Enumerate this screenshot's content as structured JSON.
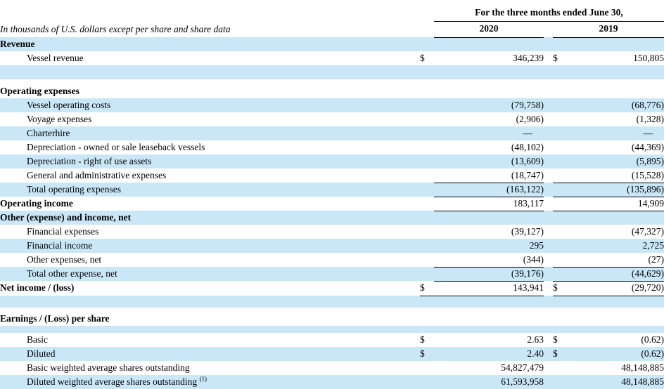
{
  "table": {
    "note": "In thousands of U.S. dollars except per share and share data",
    "period_header": "For the three months ended June 30,",
    "years": [
      "2020",
      "2019"
    ],
    "currency_symbol": "$",
    "colors": {
      "row_highlight": "#cae7f8",
      "border": "#000000",
      "text": "#000000",
      "background": "#ffffff"
    },
    "rows": [
      {
        "label": "Revenue",
        "bold": true,
        "bg": "hl",
        "h": 20
      },
      {
        "label": "Vessel revenue",
        "indent": true,
        "d1": "$",
        "v1": "346,239",
        "d2": "$",
        "v2": "150,805",
        "h": 20
      },
      {
        "label": "",
        "bg": "hl",
        "h": 20
      },
      {
        "label": "",
        "h": 7
      },
      {
        "label": "Operating expenses",
        "bold": true,
        "h": 20
      },
      {
        "label": "Vessel operating costs",
        "indent": true,
        "bg": "hl",
        "v1": "(79,758)",
        "v2": "(68,776)",
        "h": 20
      },
      {
        "label": "Voyage expenses",
        "indent": true,
        "v1": "(2,906)",
        "v2": "(1,328)",
        "h": 20
      },
      {
        "label": "Charterhire",
        "indent": true,
        "bg": "hl",
        "v1": "—",
        "v2": "—",
        "h": 20
      },
      {
        "label": "Depreciation - owned or sale leaseback vessels",
        "indent": true,
        "v1": "(48,102)",
        "v2": "(44,369)",
        "h": 20
      },
      {
        "label": "Depreciation - right of use assets",
        "indent": true,
        "bg": "hl",
        "v1": "(13,609)",
        "v2": "(5,895)",
        "h": 20
      },
      {
        "label": "General and administrative expenses",
        "indent": true,
        "v1": "(18,747)",
        "v2": "(15,528)",
        "u": true,
        "h": 20
      },
      {
        "label": "Total operating expenses",
        "indent": true,
        "bg": "hl",
        "v1": "(163,122)",
        "v2": "(135,896)",
        "u": true,
        "h": 20
      },
      {
        "label": "Operating income",
        "bold": true,
        "v1": "183,117",
        "v2": "14,909",
        "u": true,
        "h": 20
      },
      {
        "label": "Other (expense) and income, net",
        "bold": true,
        "bg": "hl",
        "h": 20
      },
      {
        "label": "Financial expenses",
        "indent": true,
        "v1": "(39,127)",
        "v2": "(47,327)",
        "h": 20
      },
      {
        "label": "Financial income",
        "indent": true,
        "bg": "hl",
        "v1": "295",
        "v2": "2,725",
        "h": 20
      },
      {
        "label": "Other expenses, net",
        "indent": true,
        "v1": "(344)",
        "v2": "(27)",
        "u": true,
        "h": 20
      },
      {
        "label": "Total other expense, net",
        "indent": true,
        "bg": "hl",
        "v1": "(39,176)",
        "v2": "(44,629)",
        "u": true,
        "h": 20
      },
      {
        "label": "Net income / (loss)",
        "bold": true,
        "d1": "$",
        "v1": "143,941",
        "d2": "$",
        "v2": "(29,720)",
        "u": true,
        "h": 21
      },
      {
        "label": "",
        "bg": "hl",
        "h": 17
      },
      {
        "label": "",
        "h": 7
      },
      {
        "label": "Earnings / (Loss) per share",
        "bold": true,
        "h": 19
      },
      {
        "label": "",
        "bg": "hl",
        "h": 10
      },
      {
        "label": "Basic",
        "indent": true,
        "d1": "$",
        "v1": "2.63",
        "d2": "$",
        "v2": "(0.62)",
        "h": 20
      },
      {
        "label": "Diluted",
        "indent": true,
        "bg": "hl",
        "d1": "$",
        "v1": "2.40",
        "d2": "$",
        "v2": "(0.62)",
        "h": 20
      },
      {
        "label": "Basic weighted average shares outstanding",
        "indent": true,
        "v1": "54,827,479",
        "v2": "48,148,885",
        "h": 20
      },
      {
        "label": "Diluted weighted average shares outstanding",
        "sup": "(1)",
        "indent": true,
        "bg": "hl",
        "v1": "61,593,958",
        "v2": "48,148,885",
        "h": 20
      }
    ]
  }
}
